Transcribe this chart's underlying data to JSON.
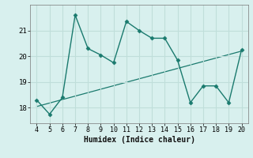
{
  "x": [
    4,
    5,
    6,
    7,
    8,
    9,
    10,
    11,
    12,
    13,
    14,
    15,
    16,
    17,
    18,
    19,
    20
  ],
  "y": [
    18.3,
    17.75,
    18.4,
    21.6,
    20.3,
    20.05,
    19.75,
    21.35,
    21.0,
    20.7,
    20.7,
    19.85,
    18.2,
    18.85,
    18.85,
    18.2,
    20.25
  ],
  "trend_x": [
    4,
    20
  ],
  "trend_y": [
    18.05,
    20.2
  ],
  "line_color": "#1a7a6e",
  "trend_color": "#1a7a6e",
  "bg_color": "#d8f0ee",
  "grid_color": "#c0deda",
  "xlabel": "Humidex (Indice chaleur)",
  "yticks": [
    18,
    19,
    20,
    21
  ],
  "xticks": [
    4,
    5,
    6,
    7,
    8,
    9,
    10,
    11,
    12,
    13,
    14,
    15,
    16,
    17,
    18,
    19,
    20
  ],
  "ylim": [
    17.4,
    22.0
  ],
  "xlim": [
    3.5,
    20.5
  ],
  "figsize": [
    3.2,
    2.0
  ],
  "dpi": 100,
  "marker": "D",
  "markersize": 2.5,
  "linewidth": 1.0,
  "trend_linewidth": 0.9
}
